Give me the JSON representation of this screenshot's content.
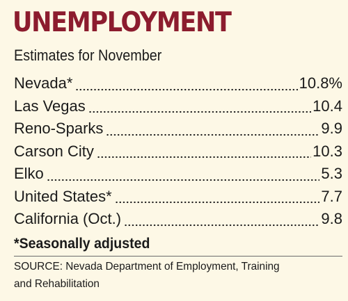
{
  "title": "UNEMPLOYMENT",
  "subtitle": "Estimates for November",
  "rows": [
    {
      "label": "Nevada*",
      "value": "10.8%"
    },
    {
      "label": "Las Vegas",
      "value": "10.4"
    },
    {
      "label": "Reno-Sparks",
      "value": "9.9"
    },
    {
      "label": "Carson City",
      "value": "10.3"
    },
    {
      "label": "Elko",
      "value": "5.3"
    },
    {
      "label": "United States*",
      "value": "7.7"
    },
    {
      "label": "California (Oct.)",
      "value": "9.8"
    }
  ],
  "note": "*Seasonally adjusted",
  "source": {
    "line1": "SOURCE: Nevada Department of Employment, Training",
    "line2": "and Rehabilitation"
  },
  "colors": {
    "title": "#8c1c2e",
    "background": "#fdf8e6"
  }
}
